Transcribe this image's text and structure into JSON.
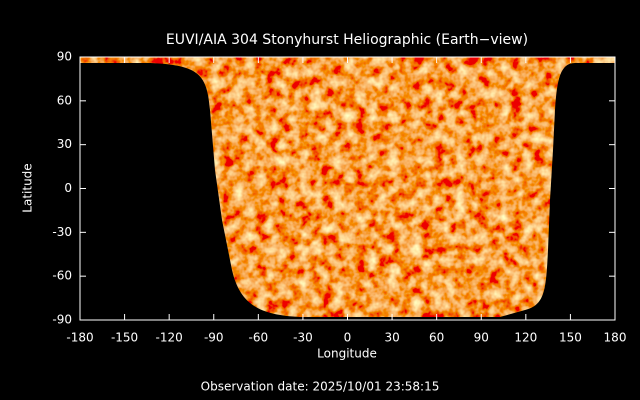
{
  "chart_data": {
    "type": "image",
    "title": "EUVI/AIA 304 Stonyhurst Heliographic (Earth−view)",
    "xlabel": "Longitude",
    "ylabel": "Latitude",
    "xlim": [
      -180,
      180
    ],
    "ylim": [
      -90,
      90
    ],
    "xticks": [
      -180,
      -150,
      -120,
      -90,
      -60,
      -30,
      0,
      30,
      60,
      90,
      120,
      150,
      180
    ],
    "yticks": [
      -90,
      -60,
      -30,
      0,
      30,
      60,
      90
    ],
    "annotation": "Observation date: 2025/10/01 23:58:15"
  }
}
